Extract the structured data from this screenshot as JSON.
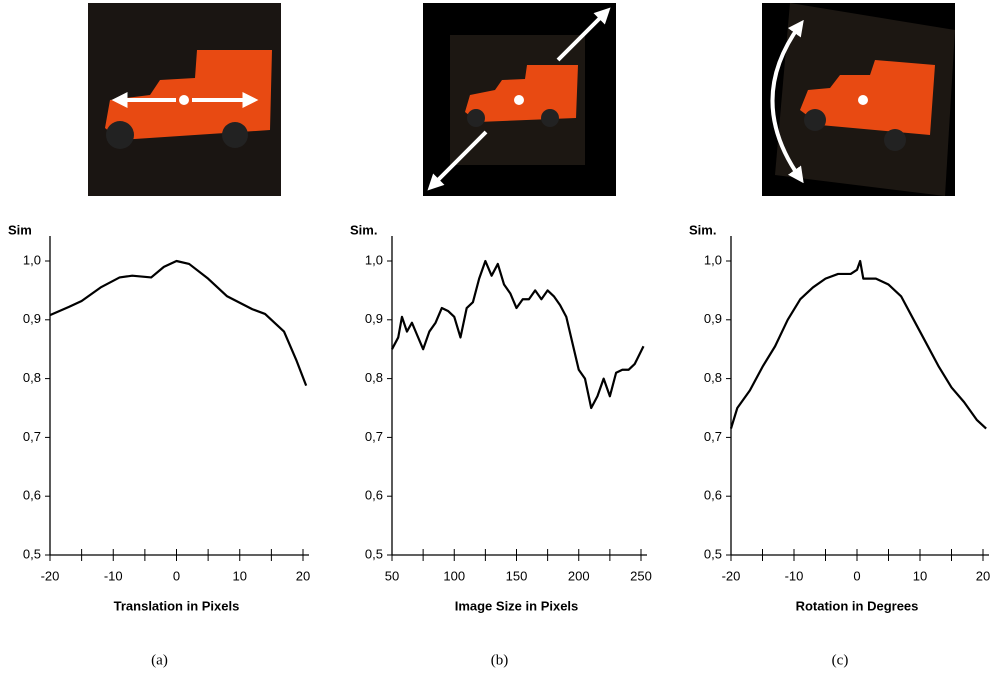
{
  "chart_data": [
    {
      "type": "line",
      "y_label": "Sim",
      "x_label": "Translation in Pixels",
      "caption": "(a)",
      "color": "#000000",
      "xlim": [
        -20,
        20
      ],
      "xticks": [
        -20,
        -10,
        0,
        10,
        20
      ],
      "xminor_ticks": [
        -15,
        -5,
        5,
        15
      ],
      "ylim": [
        0.5,
        1.0
      ],
      "yticks": [
        {
          "value": 0.5,
          "label": "0,5"
        },
        {
          "value": 0.6,
          "label": "0,6"
        },
        {
          "value": 0.7,
          "label": "0,7"
        },
        {
          "value": 0.8,
          "label": "0,8"
        },
        {
          "value": 0.9,
          "label": "0,9"
        },
        {
          "value": 1.0,
          "label": "1,0"
        }
      ],
      "x": [
        -20,
        -17,
        -15,
        -12,
        -9,
        -7,
        -4,
        -2,
        0,
        2,
        5,
        8,
        12,
        14,
        17,
        19,
        20.5
      ],
      "values": [
        0.908,
        0.922,
        0.932,
        0.955,
        0.972,
        0.975,
        0.972,
        0.99,
        1.0,
        0.995,
        0.97,
        0.94,
        0.918,
        0.91,
        0.88,
        0.83,
        0.788
      ]
    },
    {
      "type": "line",
      "y_label": "Sim.",
      "x_label": "Image Size in Pixels",
      "caption": "(b)",
      "color": "#000000",
      "xlim": [
        50,
        250
      ],
      "xticks": [
        50,
        100,
        150,
        200,
        250
      ],
      "xminor_ticks": [
        75,
        125,
        175,
        225
      ],
      "ylim": [
        0.5,
        1.0
      ],
      "yticks": [
        {
          "value": 0.5,
          "label": "0,5"
        },
        {
          "value": 0.6,
          "label": "0,6"
        },
        {
          "value": 0.7,
          "label": "0,7"
        },
        {
          "value": 0.8,
          "label": "0,8"
        },
        {
          "value": 0.9,
          "label": "0,9"
        },
        {
          "value": 1.0,
          "label": "1,0"
        }
      ],
      "x": [
        50,
        55,
        58,
        62,
        66,
        70,
        75,
        80,
        85,
        90,
        95,
        100,
        105,
        110,
        115,
        120,
        125,
        130,
        135,
        140,
        145,
        150,
        155,
        160,
        165,
        170,
        175,
        180,
        185,
        190,
        195,
        200,
        205,
        210,
        215,
        220,
        225,
        230,
        235,
        240,
        245,
        252
      ],
      "values": [
        0.85,
        0.87,
        0.905,
        0.88,
        0.895,
        0.875,
        0.85,
        0.88,
        0.895,
        0.92,
        0.915,
        0.905,
        0.87,
        0.92,
        0.93,
        0.97,
        1.0,
        0.975,
        0.995,
        0.96,
        0.945,
        0.92,
        0.935,
        0.935,
        0.95,
        0.935,
        0.95,
        0.94,
        0.925,
        0.905,
        0.86,
        0.815,
        0.8,
        0.75,
        0.77,
        0.8,
        0.77,
        0.81,
        0.815,
        0.815,
        0.825,
        0.855
      ]
    },
    {
      "type": "line",
      "y_label": "Sim.",
      "x_label": "Rotation in Degrees",
      "caption": "(c)",
      "color": "#000000",
      "xlim": [
        -20,
        20
      ],
      "xticks": [
        -20,
        -10,
        0,
        10,
        20
      ],
      "xminor_ticks": [
        -15,
        -5,
        5,
        15
      ],
      "ylim": [
        0.5,
        1.0
      ],
      "yticks": [
        {
          "value": 0.5,
          "label": "0,5"
        },
        {
          "value": 0.6,
          "label": "0,6"
        },
        {
          "value": 0.7,
          "label": "0,7"
        },
        {
          "value": 0.8,
          "label": "0,8"
        },
        {
          "value": 0.9,
          "label": "0,9"
        },
        {
          "value": 1.0,
          "label": "1,0"
        }
      ],
      "x": [
        -20,
        -19,
        -17,
        -15,
        -13,
        -11,
        -9,
        -7,
        -5,
        -3,
        -1,
        0,
        0.5,
        1,
        3,
        5,
        7,
        9,
        11,
        13,
        15,
        17,
        19,
        20.5
      ],
      "values": [
        0.715,
        0.75,
        0.78,
        0.82,
        0.855,
        0.9,
        0.935,
        0.955,
        0.97,
        0.978,
        0.978,
        0.985,
        1.0,
        0.97,
        0.97,
        0.96,
        0.94,
        0.9,
        0.86,
        0.82,
        0.785,
        0.76,
        0.73,
        0.715
      ]
    }
  ]
}
